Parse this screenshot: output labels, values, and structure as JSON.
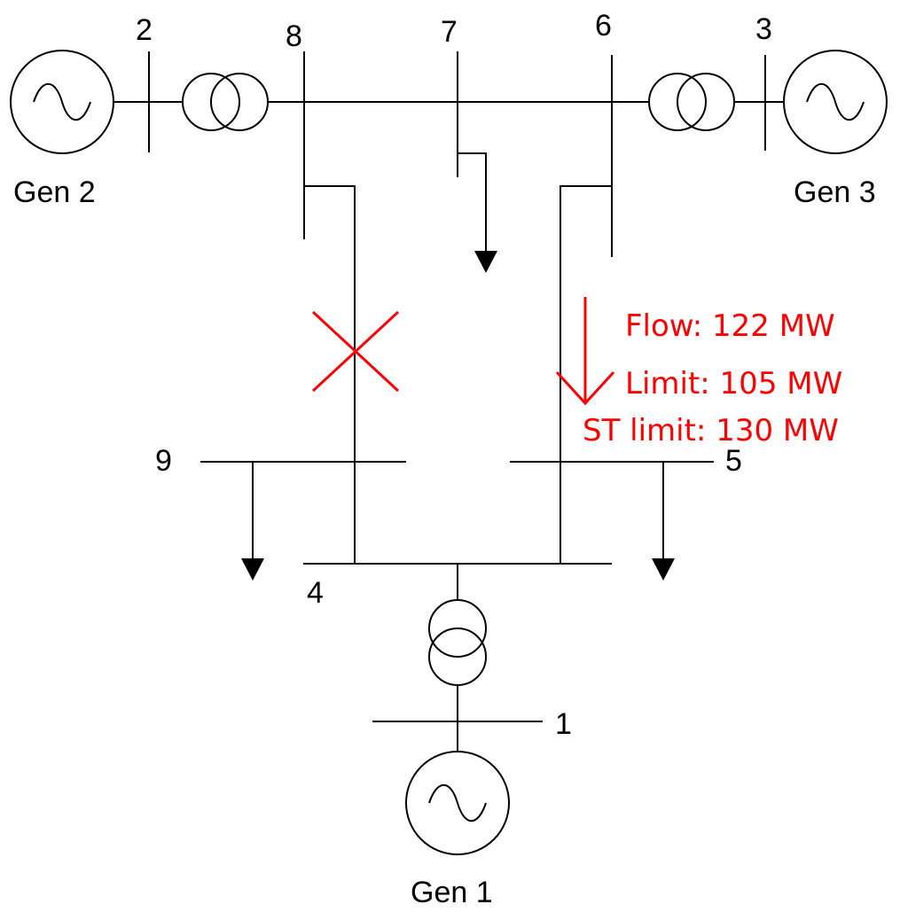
{
  "buses": {
    "b1": "1",
    "b2": "2",
    "b3": "3",
    "b4": "4",
    "b5": "5",
    "b6": "6",
    "b7": "7",
    "b8": "8",
    "b9": "9"
  },
  "generators": {
    "gen1": "Gen 1",
    "gen2": "Gen 2",
    "gen3": "Gen 3"
  },
  "annotation": {
    "flow": "Flow: 122 MW",
    "limit": "Limit: 105 MW",
    "st_limit": "ST limit: 130 MW"
  },
  "colors": {
    "line": "#000000",
    "alert": "#ff0000"
  },
  "icons": {
    "generator": "generator-icon",
    "transformer": "transformer-icon",
    "load": "load-arrow-icon",
    "outage": "line-outage-x-icon",
    "flow": "flow-direction-arrow-icon"
  }
}
